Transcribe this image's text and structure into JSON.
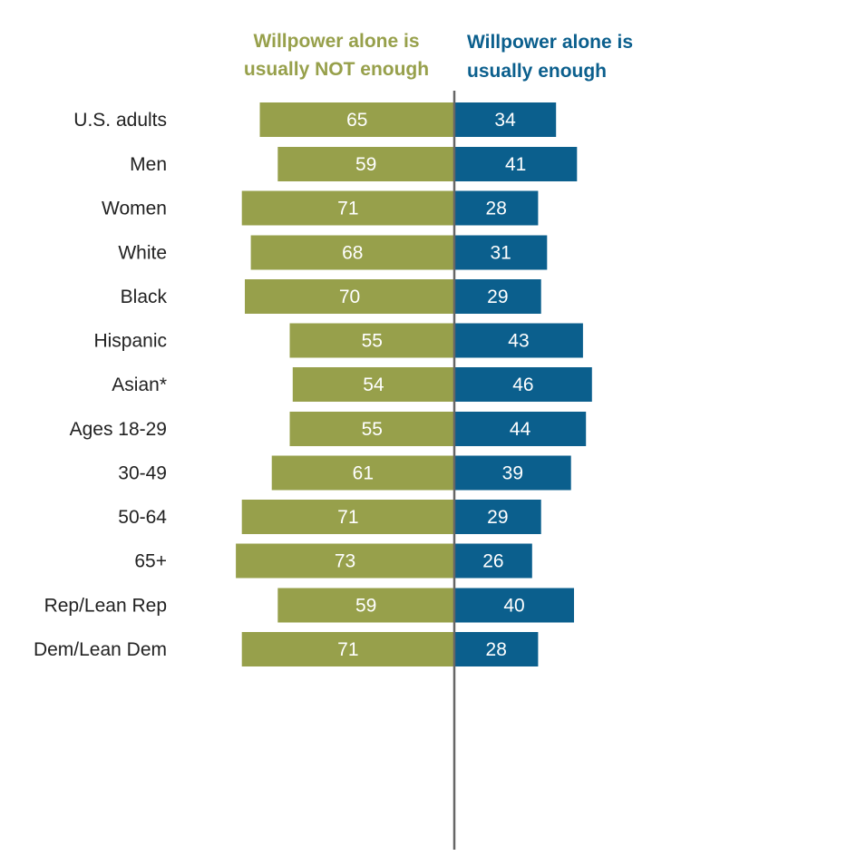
{
  "chart_data": {
    "type": "bar",
    "orientation": "horizontal-diverging",
    "series": [
      {
        "name": "Willpower alone is usually NOT enough",
        "header_lines": [
          "Willpower alone is",
          "usually NOT enough"
        ],
        "color": "#97a04b",
        "values": [
          65,
          59,
          71,
          68,
          70,
          55,
          54,
          55,
          61,
          71,
          73,
          59,
          71
        ]
      },
      {
        "name": "Willpower alone is usually enough",
        "header_lines": [
          "Willpower alone is",
          "usually enough"
        ],
        "color": "#0b5f8d",
        "values": [
          34,
          41,
          28,
          31,
          29,
          43,
          46,
          44,
          39,
          29,
          26,
          40,
          28
        ]
      }
    ],
    "categories": [
      "U.S. adults",
      "Men",
      "Women",
      "White",
      "Black",
      "Hispanic",
      "Asian*",
      "Ages 18-29",
      "30-49",
      "50-64",
      "65+",
      "Rep/Lean Rep",
      "Dem/Lean Dem"
    ],
    "groups": [
      [
        0
      ],
      [
        1,
        2
      ],
      [
        3,
        4,
        5,
        6
      ],
      [
        7,
        8,
        9,
        10
      ],
      [
        11,
        12
      ]
    ],
    "axis_color": "#666666"
  }
}
